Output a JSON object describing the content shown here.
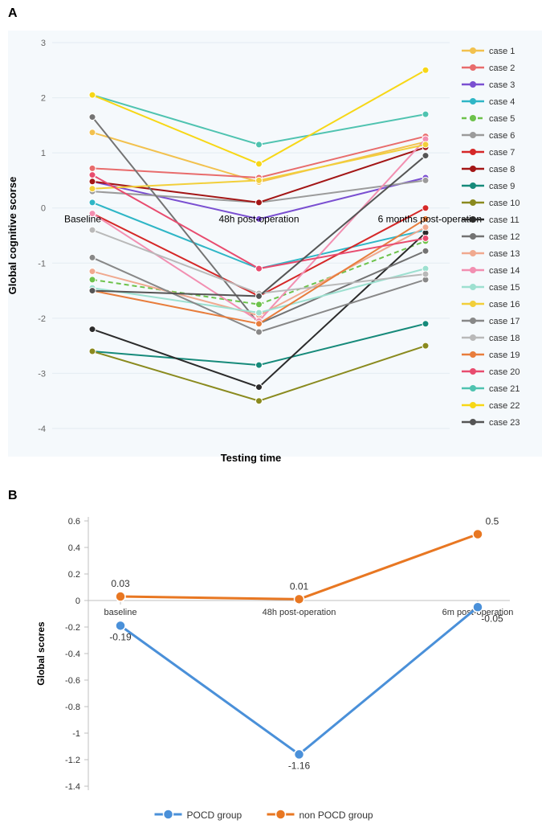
{
  "panelA": {
    "label": "A",
    "type": "line",
    "background_color": "#f5f9fc",
    "grid_color": "#e3ecf2",
    "axis_text_color": "#333333",
    "ylabel": "Global cognitive scorse",
    "xlabel": "Testing time",
    "xlabel_fontsize": 13,
    "ylabel_fontsize": 13,
    "categories": [
      "Baseline",
      "48h post-operation",
      "6 months post-operation"
    ],
    "ylim": [
      -4,
      3
    ],
    "yticks": [
      -4,
      -3,
      -2,
      -1,
      0,
      1,
      2,
      3
    ],
    "tick_fontsize": 11,
    "line_width": 2,
    "marker_radius": 4,
    "series": [
      {
        "name": "case 1",
        "color": "#f2c14e",
        "values": [
          1.37,
          0.47,
          1.2
        ],
        "dash": null
      },
      {
        "name": "case 2",
        "color": "#e86c6c",
        "values": [
          0.72,
          0.55,
          1.3
        ],
        "dash": null
      },
      {
        "name": "case 3",
        "color": "#7a4fd1",
        "values": [
          0.48,
          -0.2,
          0.55
        ],
        "dash": null
      },
      {
        "name": "case 4",
        "color": "#2fb6c6",
        "values": [
          0.1,
          -1.1,
          -0.4
        ],
        "dash": null
      },
      {
        "name": "case 5",
        "color": "#6dc24b",
        "values": [
          -1.3,
          -1.75,
          -0.6
        ],
        "dash": "6,4"
      },
      {
        "name": "case 6",
        "color": "#9b9b9b",
        "values": [
          0.3,
          0.1,
          0.5
        ],
        "dash": null
      },
      {
        "name": "case 7",
        "color": "#d52828",
        "values": [
          -0.1,
          -1.6,
          0.0
        ],
        "dash": null
      },
      {
        "name": "case 8",
        "color": "#a31616",
        "values": [
          0.48,
          0.1,
          1.1
        ],
        "dash": null
      },
      {
        "name": "case 9",
        "color": "#168a7a",
        "values": [
          -2.6,
          -2.85,
          -2.1
        ],
        "dash": null
      },
      {
        "name": "case 10",
        "color": "#8a8a1e",
        "values": [
          -2.6,
          -3.5,
          -2.5
        ],
        "dash": null
      },
      {
        "name": "case 11",
        "color": "#2b2b2b",
        "values": [
          -2.2,
          -3.25,
          -0.45
        ],
        "dash": null
      },
      {
        "name": "case 12",
        "color": "#737373",
        "values": [
          1.65,
          -2.1,
          -0.78
        ],
        "dash": null
      },
      {
        "name": "case 13",
        "color": "#f0a98f",
        "values": [
          -1.15,
          -1.95,
          -0.35
        ],
        "dash": null
      },
      {
        "name": "case 14",
        "color": "#f28fb1",
        "values": [
          -0.1,
          -2.05,
          1.25
        ],
        "dash": null
      },
      {
        "name": "case 15",
        "color": "#9de0d0",
        "values": [
          -1.45,
          -1.9,
          -1.1
        ],
        "dash": null
      },
      {
        "name": "case 16",
        "color": "#f2cf3a",
        "values": [
          0.35,
          0.5,
          1.15
        ],
        "dash": null
      },
      {
        "name": "case 17",
        "color": "#888888",
        "values": [
          -0.9,
          -2.25,
          -1.3
        ],
        "dash": null
      },
      {
        "name": "case 18",
        "color": "#b9b9b9",
        "values": [
          -0.4,
          -1.55,
          -1.2
        ],
        "dash": null
      },
      {
        "name": "case 19",
        "color": "#e87d3c",
        "values": [
          -1.5,
          -2.1,
          -0.2
        ],
        "dash": null
      },
      {
        "name": "case 20",
        "color": "#e84c6f",
        "values": [
          0.6,
          -1.1,
          -0.55
        ],
        "dash": null
      },
      {
        "name": "case 21",
        "color": "#4fc3b0",
        "values": [
          2.05,
          1.15,
          1.7
        ],
        "dash": null
      },
      {
        "name": "case 22",
        "color": "#f7d716",
        "values": [
          2.05,
          0.8,
          2.5
        ],
        "dash": null
      },
      {
        "name": "case 23",
        "color": "#555555",
        "values": [
          -1.5,
          -1.6,
          0.95
        ],
        "dash": null
      }
    ]
  },
  "panelB": {
    "label": "B",
    "type": "line",
    "background_color": "#ffffff",
    "axis_line_color": "#bfbfbf",
    "ylabel": "Global scores",
    "ylabel_fontsize": 12,
    "categories": [
      "baseline",
      "48h post-operation",
      "6m post-operation"
    ],
    "ylim": [
      -1.4,
      0.6
    ],
    "yticks": [
      0.6,
      0.4,
      0.2,
      0,
      -0.2,
      -0.4,
      -0.6,
      -0.8,
      -1,
      -1.2,
      -1.4
    ],
    "tick_fontsize": 11,
    "line_width": 3,
    "marker_radius": 6,
    "series": [
      {
        "name": "POCD group",
        "color": "#4a90d9",
        "values": [
          -0.19,
          -1.16,
          -0.05
        ],
        "labels": [
          "-0.19",
          "-1.16",
          "-0.05"
        ]
      },
      {
        "name": "non POCD group",
        "color": "#e87722",
        "values": [
          0.03,
          0.01,
          0.5
        ],
        "labels": [
          "0.03",
          "0.01",
          "0.5"
        ]
      }
    ]
  }
}
